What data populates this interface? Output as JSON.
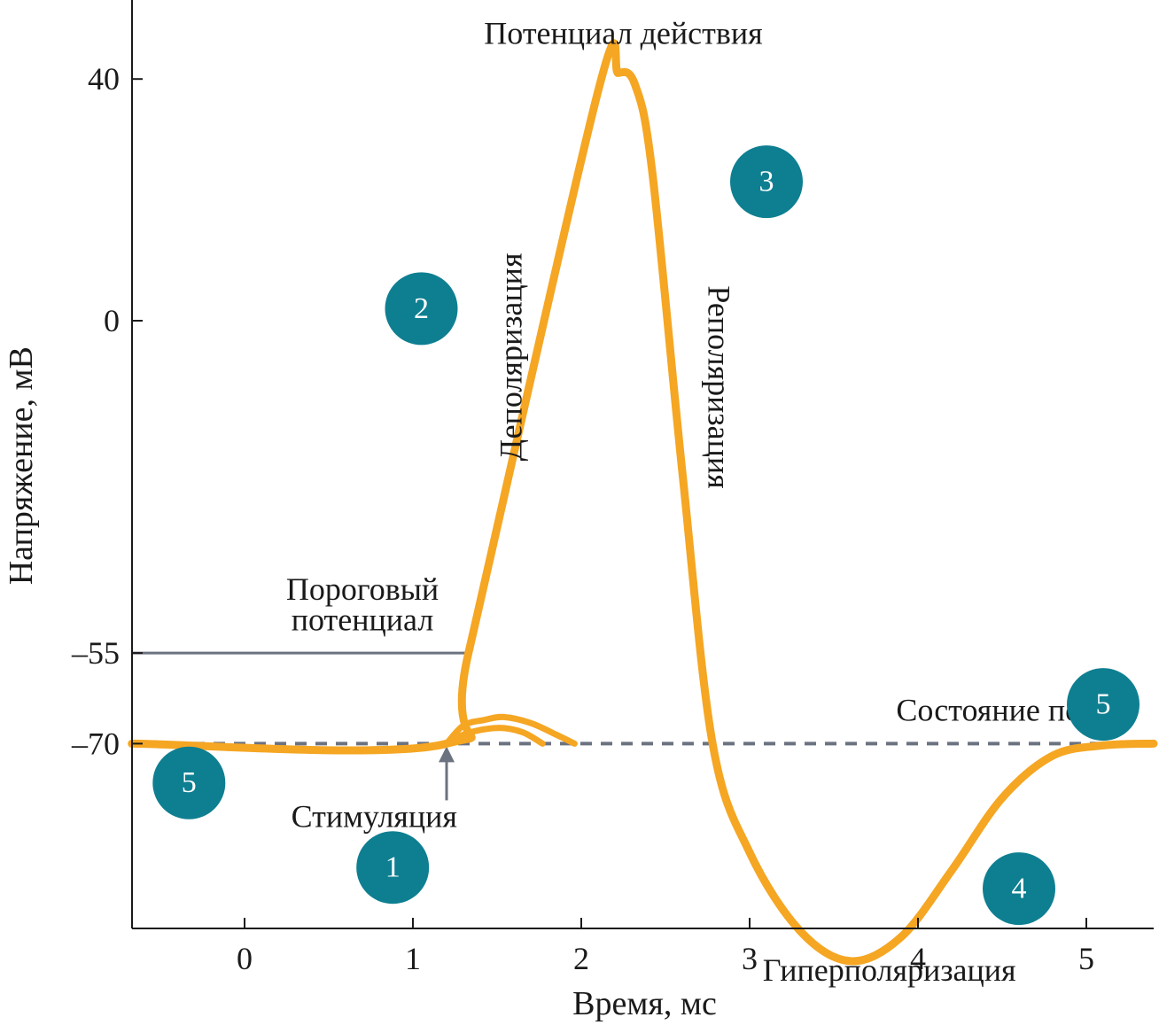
{
  "chart_data": {
    "type": "line",
    "title": "",
    "xlabel": "Время, мс",
    "ylabel": "Напряжение, мВ",
    "xlim": [
      -0.67,
      5.4
    ],
    "ylim": [
      -107,
      54
    ],
    "x_ticks": [
      0,
      1,
      2,
      3,
      4,
      5
    ],
    "y_ticks": [
      40,
      0,
      -55,
      -70
    ],
    "y_tick_labels": [
      "40",
      "0",
      "–55",
      "–70"
    ],
    "grid": false,
    "legend": "none",
    "resting_potential": -70,
    "threshold_potential": -55,
    "stimulation_time": 1.2,
    "series": [
      {
        "color": "#F5A623",
        "points": [
          [
            -0.67,
            -70
          ],
          [
            1.2,
            -70
          ],
          [
            1.33,
            -55
          ],
          [
            2.1,
            38
          ],
          [
            2.22,
            41
          ],
          [
            2.32,
            39
          ],
          [
            2.42,
            25
          ],
          [
            2.6,
            -25
          ],
          [
            2.78,
            -70
          ],
          [
            3.0,
            -88
          ],
          [
            3.3,
            -101
          ],
          [
            3.6,
            -106
          ],
          [
            3.9,
            -102
          ],
          [
            4.2,
            -91
          ],
          [
            4.5,
            -79
          ],
          [
            4.8,
            -72
          ],
          [
            5.1,
            -70.3
          ],
          [
            5.4,
            -70
          ]
        ]
      },
      {
        "color": "#F5A623",
        "points": [
          [
            1.2,
            -70
          ],
          [
            1.3,
            -67
          ],
          [
            1.42,
            -66.1
          ],
          [
            1.54,
            -65.6
          ],
          [
            1.7,
            -66.6
          ],
          [
            1.85,
            -68.5
          ],
          [
            1.96,
            -70
          ]
        ]
      },
      {
        "color": "#F5A623",
        "points": [
          [
            1.2,
            -70
          ],
          [
            1.32,
            -68.3
          ],
          [
            1.5,
            -67.4
          ],
          [
            1.65,
            -68.1
          ],
          [
            1.77,
            -70
          ]
        ]
      }
    ],
    "annotations": [
      {
        "text": "Потенциал действия",
        "x": 2.25,
        "y": 47
      },
      {
        "text": "Деполяризация",
        "x": 1.6,
        "y": -6,
        "rotation": -90
      },
      {
        "text": "Реполяризация",
        "x": 2.8,
        "y": -11,
        "rotation": 90
      },
      {
        "text": "Пороговый",
        "x": 0.7,
        "y": -45
      },
      {
        "text": "потенциал",
        "x": 0.7,
        "y": -50
      },
      {
        "text": "Состояние покоя",
        "x": 4.55,
        "y": -65
      },
      {
        "text": "Стимуляция",
        "x": 0.77,
        "y": -82.6
      },
      {
        "text": "Гиперполяризация",
        "x": 3.83,
        "y": -108
      }
    ],
    "markers": [
      {
        "label": "1",
        "x": 0.88,
        "y": -90.5
      },
      {
        "label": "2",
        "x": 1.05,
        "y": 2
      },
      {
        "label": "3",
        "x": 3.1,
        "y": 23
      },
      {
        "label": "4",
        "x": 4.6,
        "y": -94
      },
      {
        "label": "5",
        "x": 5.1,
        "y": -63.5
      },
      {
        "label": "5",
        "x": -0.33,
        "y": -76.5
      }
    ],
    "colors": {
      "curve": "#F5A623",
      "marker": "#0E7F91",
      "axis": "#1a1a1a",
      "guide": "#6B7280",
      "resting_dash": "#6B7280"
    }
  }
}
